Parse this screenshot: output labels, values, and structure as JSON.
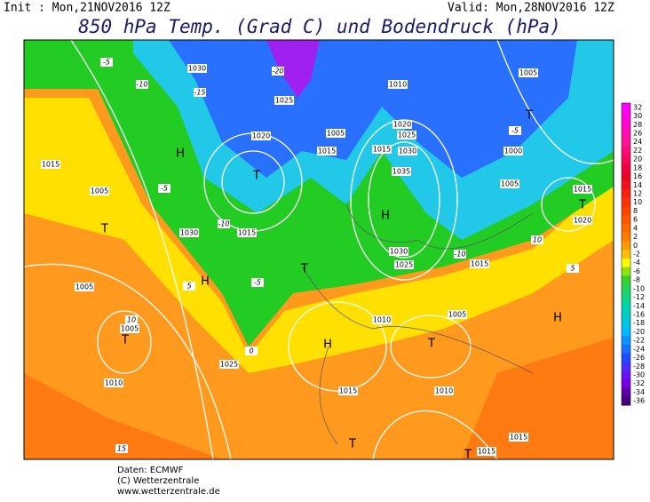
{
  "header": {
    "init": "Init : Mon,21NOV2016 12Z",
    "valid": "Valid: Mon,28NOV2016 12Z",
    "title": "850 hPa Temp. (Grad C) und Bodendruck (hPa)"
  },
  "map": {
    "isobar_labels": [
      "1030",
      "1025",
      "1015",
      "1005",
      "1030",
      "1015",
      "1005",
      "1005",
      "1010",
      "1025",
      "1015",
      "1010",
      "1015",
      "1030",
      "1035",
      "1030",
      "1025",
      "1015",
      "1005",
      "1000",
      "1005",
      "1015",
      "1020",
      "1010",
      "1005",
      "1015",
      "1015",
      "1010",
      "1020",
      "1025",
      "1005",
      "1015",
      "1020"
    ],
    "systems": [
      "H",
      "T",
      "H",
      "T",
      "H",
      "T",
      "H",
      "T",
      "H",
      "T",
      "T",
      "T",
      "T",
      "T"
    ],
    "temp_labels": [
      "-5",
      "-10",
      "-15",
      "-20",
      "-10",
      "-5",
      "0",
      "5",
      "10",
      "15",
      "-5",
      "-5",
      "-10",
      "5",
      "10"
    ]
  },
  "colorbar": {
    "labels": [
      32,
      30,
      28,
      26,
      24,
      22,
      20,
      18,
      16,
      14,
      12,
      10,
      8,
      6,
      4,
      2,
      0,
      -2,
      -4,
      -6,
      -8,
      -10,
      -12,
      -14,
      -16,
      -18,
      -20,
      -22,
      -24,
      -26,
      -28,
      -30,
      -32,
      -34,
      -36
    ]
  },
  "footer": {
    "lines": [
      "Daten: ECMWF",
      "(C) Wetterzentrale",
      "www.wetterzentrale.de"
    ]
  }
}
